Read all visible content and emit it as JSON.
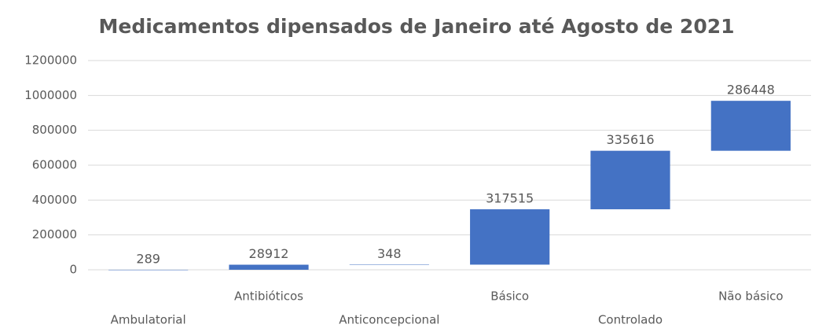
{
  "chart_data": {
    "type": "waterfall",
    "title": "Medicamentos dipensados de Janeiro até Agosto de 2021",
    "categories": [
      "Ambulatorial",
      "Antibióticos",
      "Anticoncepcional",
      "Básico",
      "Controlado",
      "Não básico"
    ],
    "values": [
      289,
      28912,
      348,
      317515,
      335616,
      286448
    ],
    "color": "#4472c4",
    "ylim": [
      0,
      1200000
    ],
    "yticks": [
      0,
      200000,
      400000,
      600000,
      800000,
      1000000,
      1200000
    ],
    "grid": true
  }
}
